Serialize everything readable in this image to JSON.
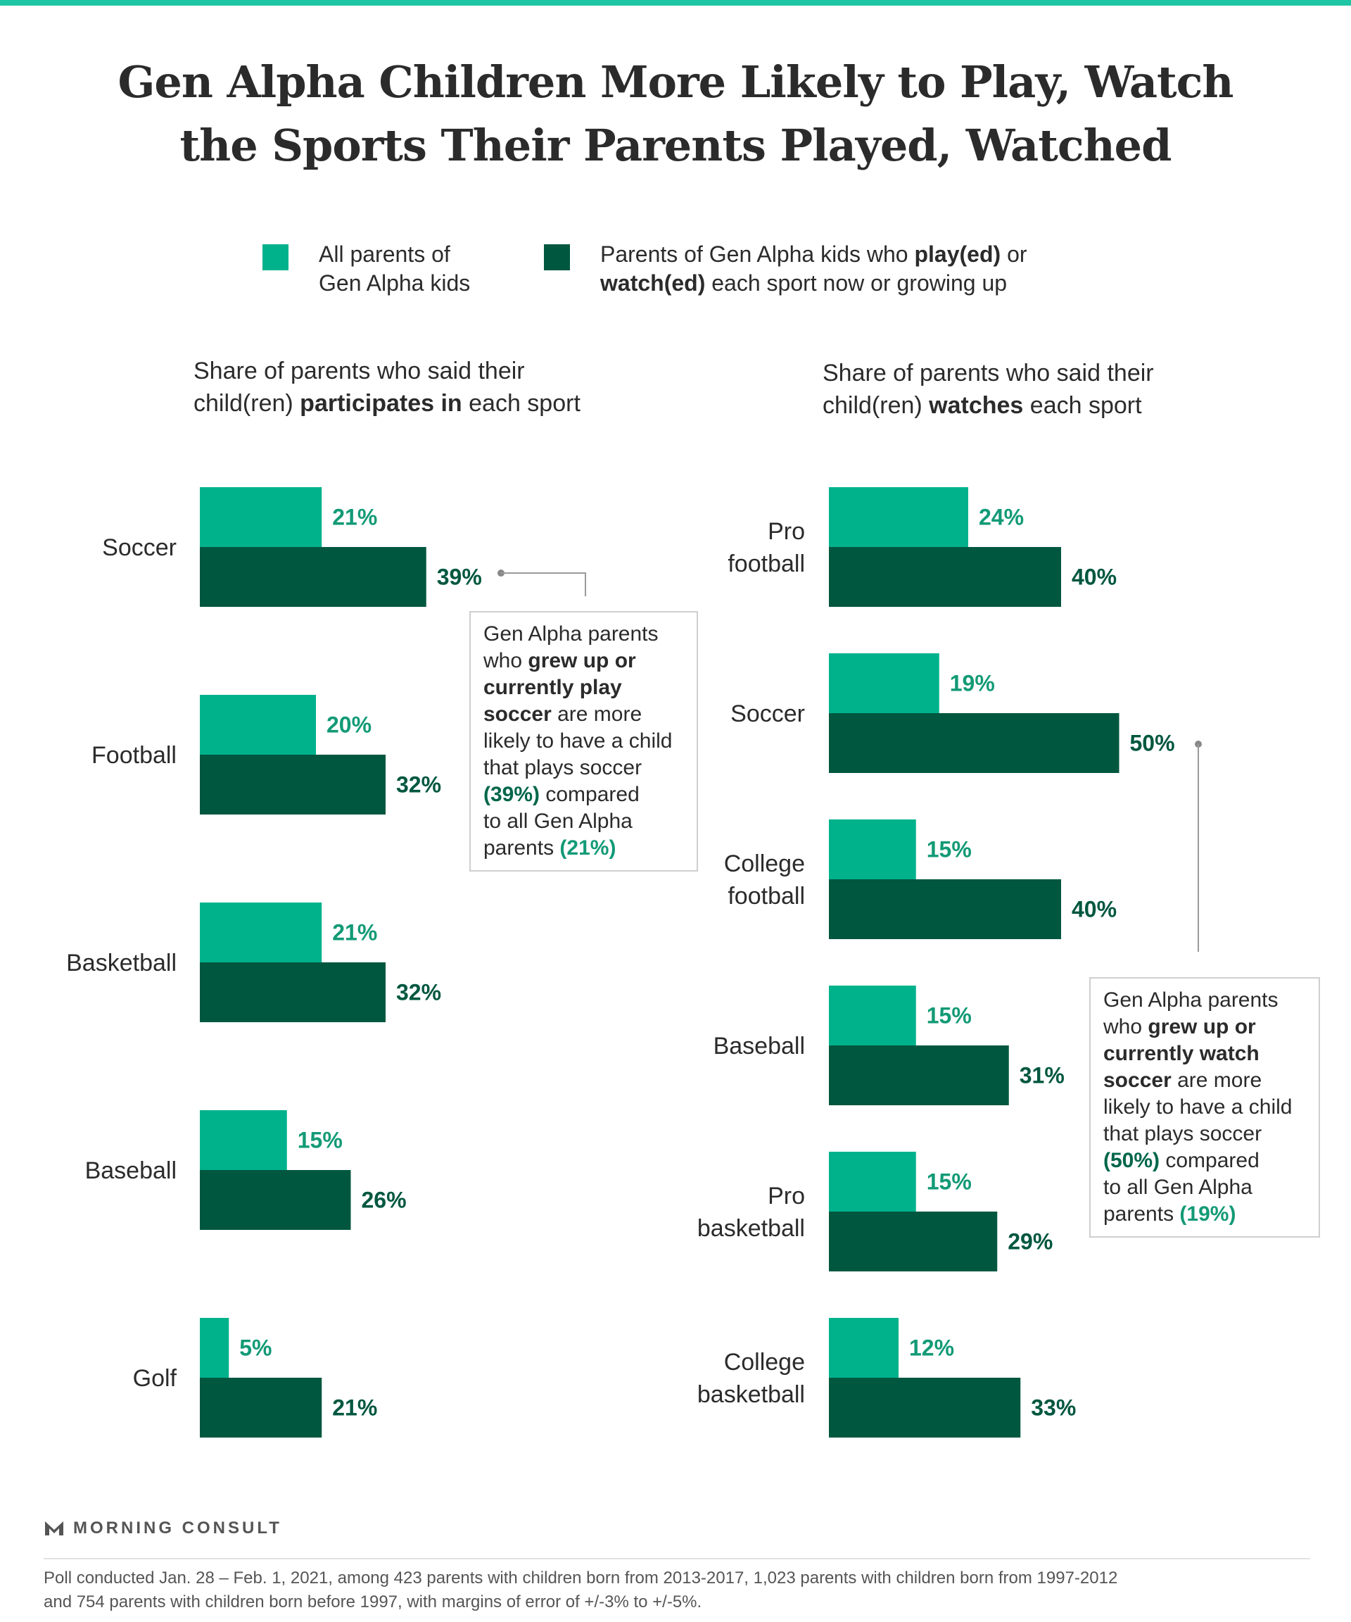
{
  "header": {
    "title_line1": "Gen Alpha Children More Likely to Play, Watch",
    "title_line2": "the Sports Their Parents Played, Watched"
  },
  "legend": {
    "all_parents_line1": "All parents of",
    "all_parents_line2": "Gen Alpha kids",
    "subset_prefix": "Parents of Gen Alpha kids who ",
    "subset_bold1": "play(ed)",
    "subset_mid": " or",
    "subset_bold2": "watch(ed)",
    "subset_suffix": " each sport now or growing up"
  },
  "colors": {
    "all_parents": "#00b28c",
    "subset": "#00573f",
    "label_light": "#129a76",
    "label_dark": "#00573f",
    "accent_bar": "#1fc6a6"
  },
  "chart_data": [
    {
      "type": "bar",
      "subtitle_line1": "Share of parents who said their",
      "subtitle_pre": "child(ren) ",
      "subtitle_bold": "participates in",
      "subtitle_post": " each sport",
      "categories": [
        "Soccer",
        "Football",
        "Basketball",
        "Baseball",
        "Golf"
      ],
      "series": [
        {
          "name": "All parents of Gen Alpha kids",
          "values": [
            21,
            20,
            21,
            15,
            5
          ]
        },
        {
          "name": "Parents of Gen Alpha kids who play(ed) or watch(ed) each sport now or growing up",
          "values": [
            39,
            32,
            32,
            26,
            21
          ]
        }
      ],
      "value_suffix": "%",
      "orientation": "horizontal"
    },
    {
      "type": "bar",
      "subtitle_line1": "Share of parents who said their",
      "subtitle_pre": "child(ren) ",
      "subtitle_bold": "watches",
      "subtitle_post": " each sport",
      "categories": [
        "Pro football",
        "Soccer",
        "College football",
        "Baseball",
        "Pro basketball",
        "College basketball"
      ],
      "category_lines": [
        [
          "Pro",
          "football"
        ],
        [
          "Soccer"
        ],
        [
          "College",
          "football"
        ],
        [
          "Baseball"
        ],
        [
          "Pro",
          "basketball"
        ],
        [
          "College",
          "basketball"
        ]
      ],
      "series": [
        {
          "name": "All parents of Gen Alpha kids",
          "values": [
            24,
            19,
            15,
            15,
            15,
            12
          ]
        },
        {
          "name": "Parents of Gen Alpha kids who play(ed) or watch(ed) each sport now or growing up",
          "values": [
            40,
            50,
            40,
            31,
            29,
            33
          ]
        }
      ],
      "value_suffix": "%",
      "orientation": "horizontal"
    }
  ],
  "callouts": {
    "left": {
      "l1": "Gen Alpha parents",
      "l2a": "who ",
      "l2b": "grew up or",
      "l3": "currently play",
      "l4a": "soccer",
      "l4b": " are more",
      "l5": "likely to have a child",
      "l6": "that plays soccer",
      "l7a": "(39%)",
      "l7b": " compared",
      "l8": "to all Gen Alpha",
      "l9a": "parents ",
      "l9b": "(21%)"
    },
    "right": {
      "l1": "Gen Alpha parents",
      "l2a": "who ",
      "l2b": "grew up or",
      "l3": "currently watch",
      "l4a": "soccer",
      "l4b": " are more",
      "l5": "likely to have a child",
      "l6": "that plays soccer",
      "l7a": "(50%)",
      "l7b": " compared",
      "l8": "to all Gen Alpha",
      "l9a": "parents ",
      "l9b": "(19%)"
    }
  },
  "footer": {
    "brand": "MORNING CONSULT",
    "note_line1": "Poll conducted Jan. 28 – Feb. 1, 2021, among 423 parents with children born from 2013-2017, 1,023 parents with children born from 1997-2012",
    "note_line2": "and 754 parents with children born before 1997, with margins of error of +/-3% to +/-5%."
  }
}
